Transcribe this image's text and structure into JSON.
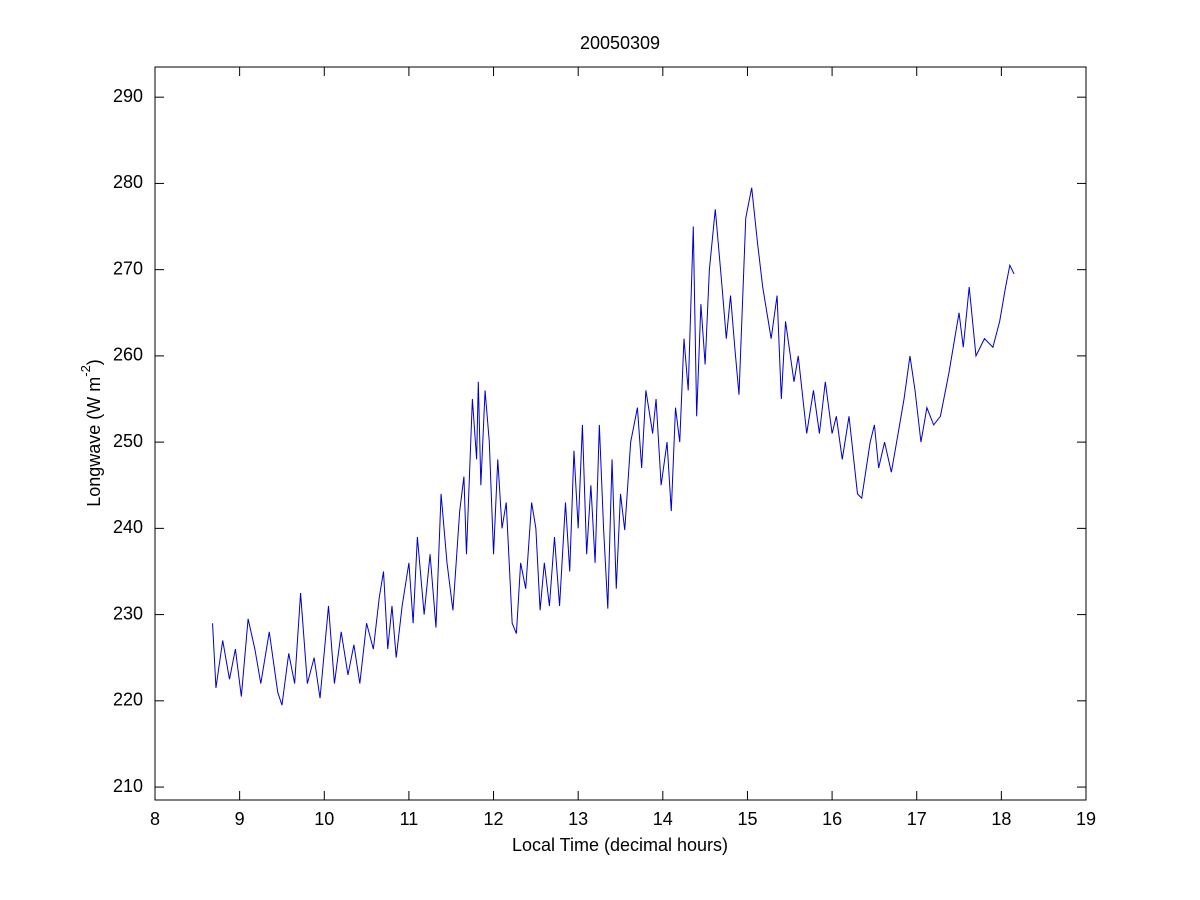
{
  "chart_data": {
    "type": "line",
    "title": "20050309",
    "xlabel": "Local Time (decimal hours)",
    "ylabel": {
      "text": "Longwave (W m",
      "superscript": "-2",
      "suffix": ")"
    },
    "xlim": [
      8,
      19
    ],
    "xticks": [
      8,
      9,
      10,
      11,
      12,
      13,
      14,
      15,
      16,
      17,
      18,
      19
    ],
    "ylim": [
      208.5,
      293.5
    ],
    "yticks": [
      210,
      220,
      230,
      240,
      250,
      260,
      270,
      280,
      290
    ],
    "grid": false,
    "x": [
      8.68,
      8.72,
      8.8,
      8.88,
      8.95,
      9.02,
      9.1,
      9.18,
      9.25,
      9.35,
      9.45,
      9.5,
      9.58,
      9.65,
      9.72,
      9.8,
      9.88,
      9.95,
      10.05,
      10.12,
      10.2,
      10.28,
      10.35,
      10.42,
      10.5,
      10.58,
      10.65,
      10.7,
      10.75,
      10.8,
      10.85,
      10.92,
      11.0,
      11.05,
      11.1,
      11.18,
      11.25,
      11.32,
      11.38,
      11.45,
      11.52,
      11.6,
      11.65,
      11.68,
      11.75,
      11.8,
      11.82,
      11.85,
      11.9,
      11.95,
      12.0,
      12.05,
      12.1,
      12.15,
      12.22,
      12.27,
      12.32,
      12.38,
      12.45,
      12.5,
      12.55,
      12.6,
      12.66,
      12.72,
      12.78,
      12.85,
      12.9,
      12.95,
      13.0,
      13.05,
      13.1,
      13.15,
      13.2,
      13.25,
      13.3,
      13.35,
      13.4,
      13.45,
      13.5,
      13.55,
      13.62,
      13.7,
      13.75,
      13.8,
      13.88,
      13.92,
      13.98,
      14.05,
      14.1,
      14.15,
      14.2,
      14.25,
      14.3,
      14.36,
      14.4,
      14.45,
      14.5,
      14.55,
      14.62,
      14.7,
      14.75,
      14.8,
      14.85,
      14.9,
      14.98,
      15.05,
      15.12,
      15.18,
      15.28,
      15.35,
      15.4,
      15.45,
      15.55,
      15.6,
      15.7,
      15.78,
      15.85,
      15.92,
      16.0,
      16.05,
      16.12,
      16.2,
      16.3,
      16.35,
      16.45,
      16.5,
      16.55,
      16.62,
      16.7,
      16.78,
      16.85,
      16.92,
      16.98,
      17.05,
      17.12,
      17.2,
      17.28,
      17.38,
      17.5,
      17.55,
      17.62,
      17.7,
      17.8,
      17.9,
      17.98,
      18.05,
      18.1,
      18.15
    ],
    "series": [
      {
        "color": "#0000cc",
        "values": [
          229,
          221.5,
          227,
          222.5,
          226,
          220.5,
          229.5,
          226,
          222,
          228,
          221,
          219.5,
          225.5,
          222,
          232.5,
          222,
          225,
          220.3,
          231,
          222,
          228,
          223,
          226.5,
          222,
          229,
          226,
          232,
          235,
          226,
          231,
          225,
          231,
          236,
          229,
          239,
          230,
          237,
          228.5,
          244,
          236,
          230.5,
          242,
          246,
          237,
          255,
          248,
          257,
          245,
          256,
          250,
          237,
          248,
          240,
          243,
          229,
          227.8,
          236,
          233,
          243,
          240,
          230.5,
          236,
          231,
          239,
          231,
          243,
          235,
          249,
          240,
          252,
          237,
          245,
          236,
          252,
          240,
          230.7,
          248,
          233,
          244,
          239.8,
          250,
          254,
          247,
          256,
          251,
          255,
          245,
          250,
          242,
          254,
          250,
          262,
          256,
          275,
          253,
          266,
          259,
          270,
          277,
          268,
          262,
          267,
          261,
          255.5,
          276,
          279.5,
          273,
          268,
          262,
          267,
          255,
          264,
          257,
          260,
          251,
          256,
          251,
          257,
          251,
          253,
          248,
          253,
          244,
          243.5,
          250,
          252,
          247,
          250,
          246.5,
          251,
          255,
          260,
          256,
          250,
          254,
          252,
          253,
          258,
          265,
          261,
          268,
          260,
          262,
          261,
          264,
          268,
          270.5,
          269.5
        ]
      }
    ]
  }
}
